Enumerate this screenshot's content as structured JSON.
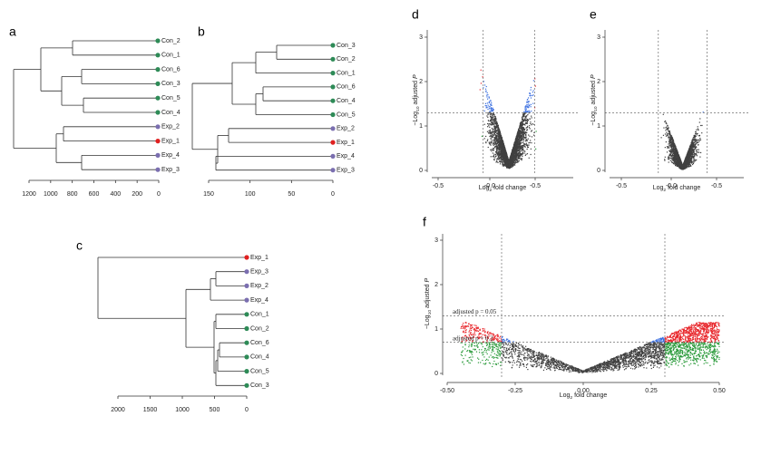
{
  "figure": {
    "a": {
      "label": "a",
      "ticks": [
        "1200",
        "1000",
        "800",
        "600",
        "400",
        "200",
        "0"
      ],
      "leaves": [
        {
          "name": "Con_2",
          "color": "#2e8b57"
        },
        {
          "name": "Con_1",
          "color": "#2e8b57"
        },
        {
          "name": "Con_6",
          "color": "#2e8b57"
        },
        {
          "name": "Con_3",
          "color": "#2e8b57"
        },
        {
          "name": "Con_5",
          "color": "#2e8b57"
        },
        {
          "name": "Con_4",
          "color": "#2e8b57"
        },
        {
          "name": "Exp_2",
          "color": "#7b6fb0"
        },
        {
          "name": "Exp_1",
          "color": "#e02020"
        },
        {
          "name": "Exp_4",
          "color": "#7b6fb0"
        },
        {
          "name": "Exp_3",
          "color": "#7b6fb0"
        }
      ]
    },
    "b": {
      "label": "b",
      "ticks": [
        "150",
        "100",
        "50",
        "0"
      ],
      "leaves": [
        {
          "name": "Con_3",
          "color": "#2e8b57"
        },
        {
          "name": "Con_2",
          "color": "#2e8b57"
        },
        {
          "name": "Con_1",
          "color": "#2e8b57"
        },
        {
          "name": "Con_6",
          "color": "#2e8b57"
        },
        {
          "name": "Con_4",
          "color": "#2e8b57"
        },
        {
          "name": "Con_5",
          "color": "#2e8b57"
        },
        {
          "name": "Exp_2",
          "color": "#7b6fb0"
        },
        {
          "name": "Exp_1",
          "color": "#e02020"
        },
        {
          "name": "Exp_4",
          "color": "#7b6fb0"
        },
        {
          "name": "Exp_3",
          "color": "#7b6fb0"
        }
      ]
    },
    "c": {
      "label": "c",
      "ticks": [
        "2000",
        "1500",
        "1000",
        "500",
        "0"
      ],
      "leaves": [
        {
          "name": "Exp_1",
          "color": "#e02020"
        },
        {
          "name": "Exp_3",
          "color": "#7b6fb0"
        },
        {
          "name": "Exp_2",
          "color": "#7b6fb0"
        },
        {
          "name": "Exp_4",
          "color": "#7b6fb0"
        },
        {
          "name": "Con_1",
          "color": "#2e8b57"
        },
        {
          "name": "Con_2",
          "color": "#2e8b57"
        },
        {
          "name": "Con_6",
          "color": "#2e8b57"
        },
        {
          "name": "Con_4",
          "color": "#2e8b57"
        },
        {
          "name": "Con_5",
          "color": "#2e8b57"
        },
        {
          "name": "Con_3",
          "color": "#2e8b57"
        }
      ]
    },
    "d": {
      "label": "d",
      "xticks": [
        "-0.5",
        "-0.0",
        "-0.5"
      ],
      "yticks": [
        "0",
        "1",
        "2",
        "3"
      ],
      "xlabel": {
        "base": "Log",
        "sub": "2",
        "rest": "fold change"
      },
      "ylabel": {
        "pre": "−Log",
        "sub": "10",
        "rest": "adjusted",
        "italic": "P"
      }
    },
    "e": {
      "label": "e",
      "xticks": [
        "-0.5",
        "-0.0",
        "-0.5"
      ],
      "yticks": [
        "0",
        "1",
        "2",
        "3"
      ],
      "xlabel": {
        "base": "Log",
        "sub": "2",
        "rest": "fold change"
      },
      "ylabel": {
        "pre": "−Log",
        "sub": "10",
        "rest": "adjusted",
        "italic": "P"
      }
    },
    "f": {
      "label": "f",
      "xticks": [
        "-0.50",
        "-0.25",
        "0.00",
        "0.25",
        "0.50"
      ],
      "yticks": [
        "0",
        "1",
        "2",
        "3"
      ],
      "xlabel": {
        "base": "Log",
        "sub": "2",
        "rest": "fold change"
      },
      "ylabel": {
        "pre": "−Log",
        "sub": "10",
        "rest": "adjusted",
        "italic": "P"
      },
      "annotations": [
        "adjusted p = 0.05",
        "adjusted p = 0.2"
      ]
    }
  }
}
